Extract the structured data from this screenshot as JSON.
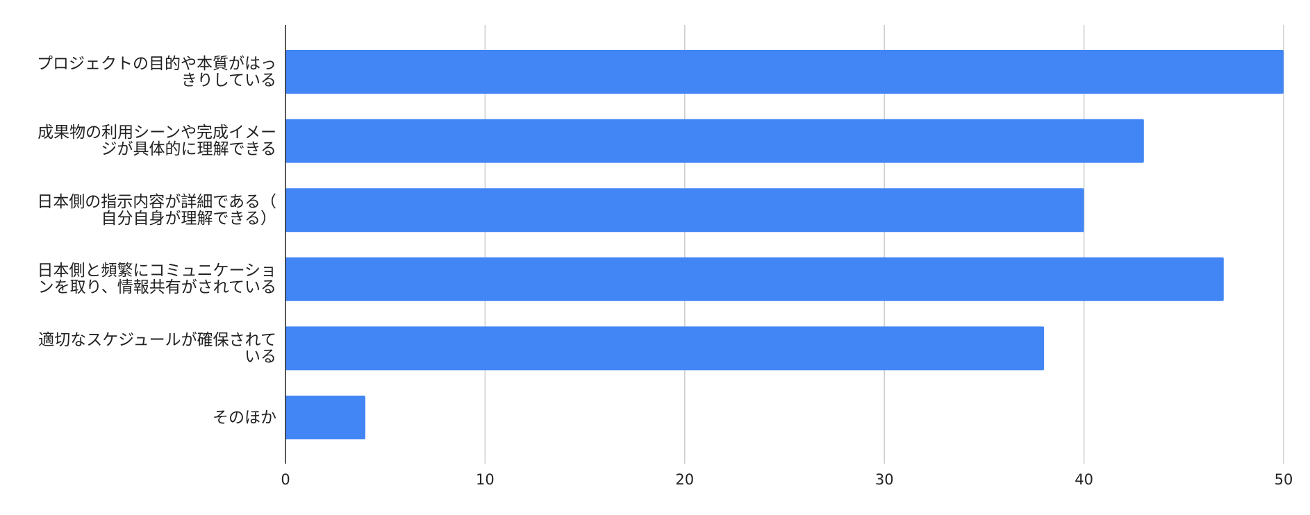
{
  "chart_data": {
    "type": "barh",
    "categories": [
      "プロジェクトの目的や本質がはっきりしている",
      "成果物の利用シーンや完成イメージが具体的に理解できる",
      "日本側の指示内容が詳細である（自分自身が理解できる）",
      "日本側と頻繁にコミュニケーションを取り、情報共有がされている",
      "適切なスケジュールが確保されている",
      "そのほか"
    ],
    "values": [
      50,
      43,
      40,
      47,
      38,
      4
    ],
    "color": "#4285f4",
    "xlim": [
      0,
      50
    ],
    "xticks": [
      0,
      10,
      20,
      30,
      40,
      50
    ],
    "grid": true
  }
}
